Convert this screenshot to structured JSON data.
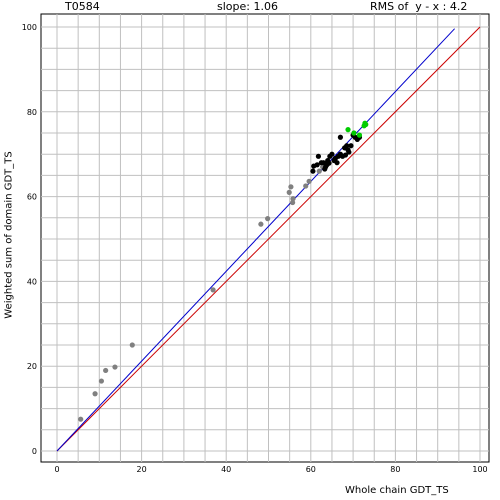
{
  "header": {
    "target": "T0584",
    "slope": "slope: 1.06",
    "rms": "RMS of  y - x : 4.2"
  },
  "chart_data": {
    "type": "scatter",
    "xlabel": "Whole chain GDT_TS",
    "ylabel": "Weighted sum of domain GDT_TS",
    "xlim": [
      0,
      100
    ],
    "ylim": [
      0,
      100
    ],
    "xticks": [
      0,
      20,
      40,
      60,
      80,
      100
    ],
    "yticks": [
      0,
      20,
      40,
      60,
      80,
      100
    ],
    "grid": true,
    "colors": {
      "grid": "#c0c0c0",
      "diagonal": "#cc0000",
      "fit": "#0000cc",
      "gray_points": "#808080",
      "black_points": "#000000",
      "green_points": "#00cc00"
    },
    "lines": [
      {
        "kind": "y=x",
        "color": "#cc0000",
        "from": [
          0,
          0
        ],
        "to": [
          100,
          100
        ]
      },
      {
        "kind": "fit",
        "color": "#0000cc",
        "from": [
          0,
          0
        ],
        "to": [
          94,
          99.6
        ]
      }
    ],
    "series": [
      {
        "color": "#808080",
        "points": [
          [
            5.6,
            7.5
          ],
          [
            9.0,
            13.5
          ],
          [
            10.5,
            16.5
          ],
          [
            11.5,
            19.0
          ],
          [
            13.7,
            19.8
          ],
          [
            17.8,
            25.0
          ],
          [
            36.9,
            38.0
          ],
          [
            48.2,
            53.5
          ],
          [
            49.8,
            54.8
          ],
          [
            54.9,
            61.0
          ],
          [
            55.3,
            62.3
          ],
          [
            55.7,
            58.6
          ],
          [
            55.8,
            59.5
          ],
          [
            58.8,
            62.5
          ],
          [
            59.6,
            63.6
          ],
          [
            62.0,
            66.0
          ],
          [
            62.8,
            67.0
          ]
        ]
      },
      {
        "color": "#000000",
        "points": [
          [
            60.5,
            66.0
          ],
          [
            60.7,
            67.2
          ],
          [
            61.5,
            67.5
          ],
          [
            61.8,
            69.5
          ],
          [
            62.5,
            68.0
          ],
          [
            63.0,
            68.0
          ],
          [
            63.3,
            66.5
          ],
          [
            63.5,
            67.0
          ],
          [
            63.8,
            67.5
          ],
          [
            64.0,
            68.5
          ],
          [
            64.3,
            67.9
          ],
          [
            64.5,
            69.5
          ],
          [
            65.0,
            70.0
          ],
          [
            65.5,
            68.5
          ],
          [
            65.8,
            69.0
          ],
          [
            66.2,
            68.0
          ],
          [
            66.5,
            69.5
          ],
          [
            67.0,
            70.0
          ],
          [
            67.0,
            74.0
          ],
          [
            67.5,
            69.5
          ],
          [
            68.0,
            71.5
          ],
          [
            68.2,
            69.8
          ],
          [
            68.5,
            72.0
          ],
          [
            68.8,
            71.0
          ],
          [
            69.0,
            70.5
          ],
          [
            69.5,
            72.0
          ],
          [
            70.0,
            74.5
          ],
          [
            70.5,
            74.0
          ],
          [
            71.0,
            73.5
          ],
          [
            71.5,
            74.0
          ]
        ]
      },
      {
        "color": "#00cc00",
        "points": [
          [
            68.8,
            75.8
          ],
          [
            70.2,
            75.0
          ],
          [
            71.5,
            74.5
          ],
          [
            72.6,
            76.7
          ],
          [
            72.8,
            77.3
          ],
          [
            73.0,
            77.0
          ]
        ]
      }
    ]
  }
}
